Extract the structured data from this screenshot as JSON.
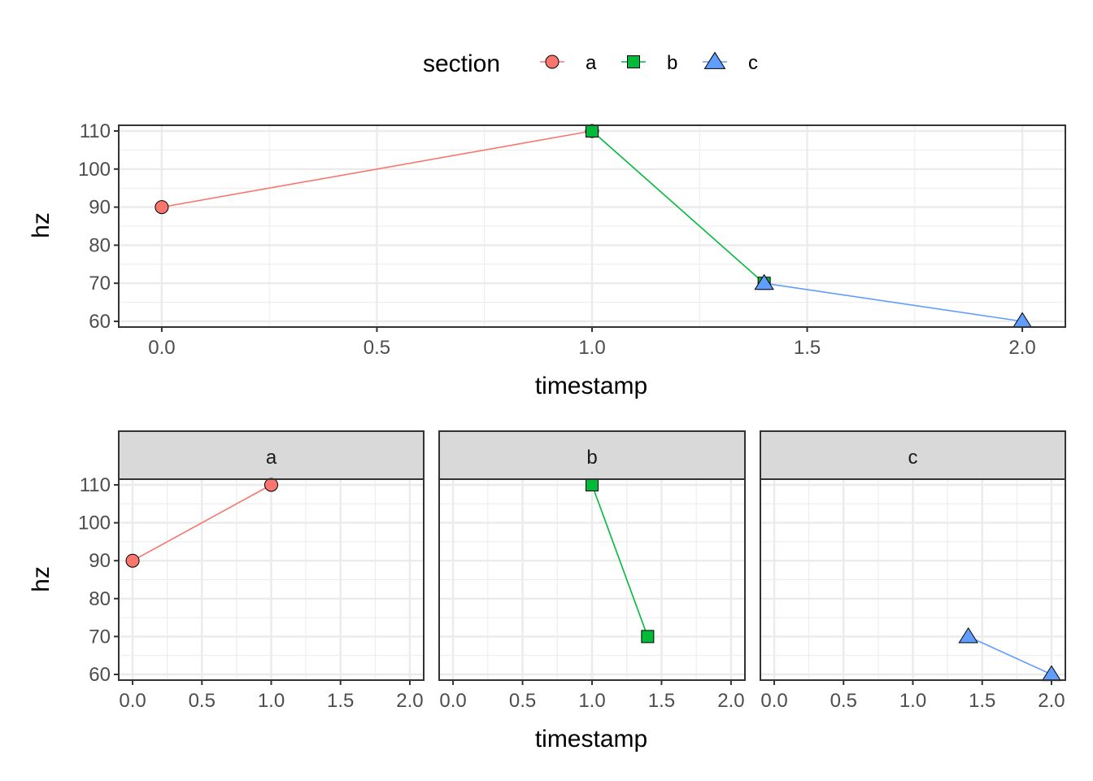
{
  "chart_data": [
    {
      "type": "line",
      "legend": {
        "title": "section",
        "position": "top",
        "entries": [
          "a",
          "b",
          "c"
        ]
      },
      "colors": {
        "a": "#F8766D",
        "b": "#00BA38",
        "c": "#619CFF"
      },
      "shapes": {
        "a": "circle",
        "b": "square",
        "c": "triangle"
      },
      "xlabel": "timestamp",
      "ylabel": "hz",
      "xlim": [
        -0.1,
        2.1
      ],
      "ylim": [
        58.5,
        111.5
      ],
      "x_ticks": [
        "0.0",
        "0.5",
        "1.0",
        "1.5",
        "2.0"
      ],
      "y_ticks": [
        "60",
        "70",
        "80",
        "90",
        "100",
        "110"
      ],
      "grid": true,
      "series": [
        {
          "name": "a",
          "x": [
            0.0,
            1.0
          ],
          "y": [
            90,
            110
          ]
        },
        {
          "name": "b",
          "x": [
            1.0,
            1.4
          ],
          "y": [
            110,
            70
          ]
        },
        {
          "name": "c",
          "x": [
            1.4,
            2.0
          ],
          "y": [
            70,
            60
          ]
        }
      ]
    },
    {
      "type": "line",
      "faceted_by": "section",
      "xlabel": "timestamp",
      "ylabel": "hz",
      "xlim": [
        -0.1,
        2.1
      ],
      "ylim": [
        58.5,
        111.5
      ],
      "x_ticks": [
        "0.0",
        "0.5",
        "1.0",
        "1.5",
        "2.0"
      ],
      "y_ticks": [
        "60",
        "70",
        "80",
        "90",
        "100",
        "110"
      ],
      "grid": true,
      "facets": [
        {
          "label": "a",
          "x": [
            0.0,
            1.0
          ],
          "y": [
            90,
            110
          ]
        },
        {
          "label": "b",
          "x": [
            1.0,
            1.4
          ],
          "y": [
            110,
            70
          ]
        },
        {
          "label": "c",
          "x": [
            1.4,
            2.0
          ],
          "y": [
            70,
            60
          ]
        }
      ]
    }
  ]
}
